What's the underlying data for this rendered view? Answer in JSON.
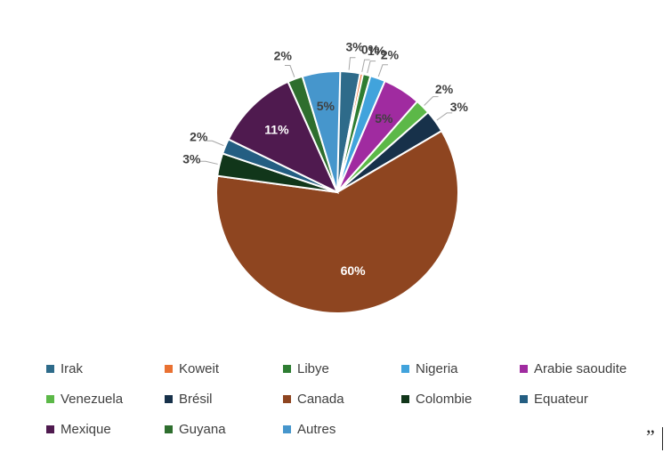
{
  "chart_data": {
    "type": "pie",
    "title": "",
    "categories": [
      "Irak",
      "Koweit",
      "Libye",
      "Nigeria",
      "Arabie saoudite",
      "Venezuela",
      "Brésil",
      "Canada",
      "Colombie",
      "Equateur",
      "Mexique",
      "Guyana",
      "Autres"
    ],
    "values": [
      3,
      0,
      1,
      2,
      5,
      2,
      3,
      60,
      3,
      2,
      11,
      2,
      5
    ],
    "labels": [
      "3%",
      "0%",
      "1%",
      "2%",
      "5%",
      "2%",
      "3%",
      "60%",
      "3%",
      "2%",
      "11%",
      "2%",
      "5%"
    ],
    "label_position": [
      "outside",
      "outside",
      "outside",
      "outside",
      "inside",
      "outside",
      "outside",
      "inside",
      "outside",
      "outside",
      "inside",
      "outside",
      "inside"
    ],
    "colors": [
      "#2E6B8A",
      "#E97132",
      "#2E7D32",
      "#41A3DC",
      "#A02BA0",
      "#5CB848",
      "#17314A",
      "#8E4520",
      "#11361A",
      "#245E82",
      "#4F1A4F",
      "#2E6E2E",
      "#4696CC"
    ],
    "legend_position": "bottom",
    "start_angle_deg": 0
  },
  "corner_mark": "”"
}
